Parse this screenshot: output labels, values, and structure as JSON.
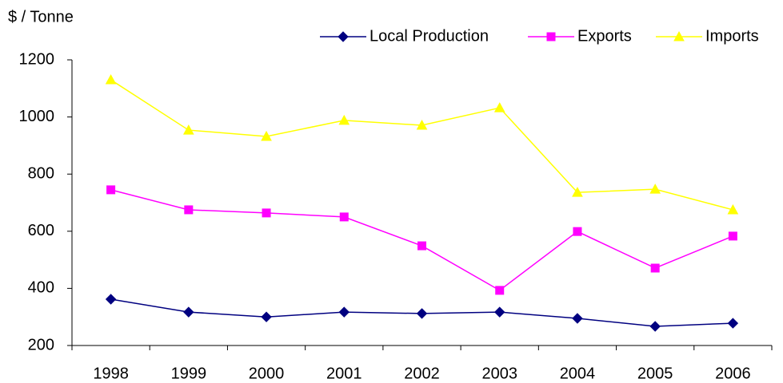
{
  "chart_data": {
    "type": "line",
    "y_label": "$ / Tonne",
    "categories": [
      "1998",
      "1999",
      "2000",
      "2001",
      "2002",
      "2003",
      "2004",
      "2005",
      "2006"
    ],
    "series": [
      {
        "name": "Local Production",
        "color": "#000080",
        "marker": "diamond",
        "values": [
          362,
          317,
          300,
          317,
          312,
          317,
          295,
          267,
          278
        ]
      },
      {
        "name": "Exports",
        "color": "#ff00ff",
        "marker": "square",
        "values": [
          745,
          675,
          664,
          650,
          549,
          393,
          599,
          471,
          583
        ]
      },
      {
        "name": "Imports",
        "color": "#ffff00",
        "marker": "triangle",
        "values": [
          1130,
          954,
          932,
          988,
          971,
          1032,
          736,
          747,
          675
        ]
      }
    ],
    "ylim": [
      200,
      1200
    ],
    "yticks": [
      200,
      400,
      600,
      800,
      1000,
      1200
    ],
    "grid": false,
    "legend": "top-right"
  }
}
